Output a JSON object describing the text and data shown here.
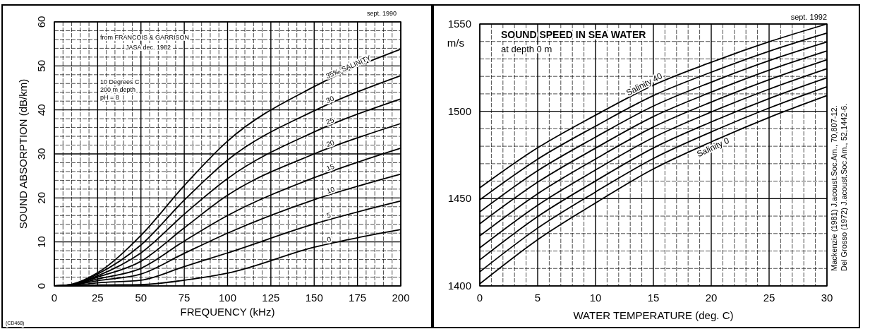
{
  "chart_data": [
    {
      "type": "line",
      "xlabel": "FREQUENCY  (kHz)",
      "ylabel": "SOUND ABSORPTION  (dB/km)",
      "xlim": [
        0,
        200
      ],
      "ylim": [
        0,
        60
      ],
      "xticks": [
        0,
        {
          "value": 5,
          "label": null
        },
        {
          "value": 10,
          "label": null
        },
        {
          "value": 15,
          "label": null
        },
        {
          "value": 20,
          "label": null
        },
        25,
        {
          "value": 30,
          "label": null
        },
        {
          "value": 35,
          "label": null
        },
        {
          "value": 40,
          "label": null
        },
        {
          "value": 45,
          "label": null
        },
        50,
        {
          "value": 55,
          "label": null
        },
        {
          "value": 60,
          "label": null
        },
        {
          "value": 65,
          "label": null
        },
        {
          "value": 70,
          "label": null
        },
        75,
        {
          "value": 80,
          "label": null
        },
        {
          "value": 85,
          "label": null
        },
        {
          "value": 90,
          "label": null
        },
        {
          "value": 95,
          "label": null
        },
        100,
        {
          "value": 105,
          "label": null
        },
        {
          "value": 110,
          "label": null
        },
        {
          "value": 115,
          "label": null
        },
        {
          "value": 120,
          "label": null
        },
        125,
        {
          "value": 130,
          "label": null
        },
        {
          "value": 135,
          "label": null
        },
        {
          "value": 140,
          "label": null
        },
        {
          "value": 145,
          "label": null
        },
        150,
        {
          "value": 155,
          "label": null
        },
        {
          "value": 160,
          "label": null
        },
        {
          "value": 165,
          "label": null
        },
        {
          "value": 170,
          "label": null
        },
        175,
        {
          "value": 180,
          "label": null
        },
        {
          "value": 185,
          "label": null
        },
        {
          "value": 190,
          "label": null
        },
        {
          "value": 195,
          "label": null
        },
        200
      ],
      "yticks": [
        0,
        {
          "value": 2,
          "label": null
        },
        {
          "value": 4,
          "label": null
        },
        {
          "value": 6,
          "label": null
        },
        {
          "value": 8,
          "label": null
        },
        10,
        {
          "value": 12,
          "label": null
        },
        {
          "value": 14,
          "label": null
        },
        {
          "value": 16,
          "label": null
        },
        {
          "value": 18,
          "label": null
        },
        20,
        {
          "value": 22,
          "label": null
        },
        {
          "value": 24,
          "label": null
        },
        {
          "value": 26,
          "label": null
        },
        {
          "value": 28,
          "label": null
        },
        30,
        {
          "value": 32,
          "label": null
        },
        {
          "value": 34,
          "label": null
        },
        {
          "value": 36,
          "label": null
        },
        {
          "value": 38,
          "label": null
        },
        40,
        {
          "value": 42,
          "label": null
        },
        {
          "value": 44,
          "label": null
        },
        {
          "value": 46,
          "label": null
        },
        {
          "value": 48,
          "label": null
        },
        50,
        {
          "value": 52,
          "label": null
        },
        {
          "value": 54,
          "label": null
        },
        {
          "value": 56,
          "label": null
        },
        {
          "value": 58,
          "label": null
        },
        60
      ],
      "grid": true,
      "marker": "none",
      "line_style": "solid",
      "x": [
        0,
        10,
        25,
        50,
        75,
        100,
        150,
        200
      ],
      "series": [
        {
          "name": "35‰  SALINITY",
          "color": "#000000",
          "values": [
            0,
            0.4,
            3,
            11.5,
            22.8,
            32.9,
            45.3,
            53.8
          ]
        },
        {
          "name": "30",
          "color": "#000000",
          "values": [
            0,
            0.3,
            2.7,
            9.3,
            19.5,
            28.6,
            39.8,
            47.8
          ]
        },
        {
          "name": "25",
          "color": "#000000",
          "values": [
            0,
            0.3,
            2.3,
            7.5,
            16.3,
            24.4,
            35,
            42.5
          ]
        },
        {
          "name": "20",
          "color": "#000000",
          "values": [
            0,
            0.2,
            2,
            5.6,
            13.2,
            20.6,
            30,
            36.9
          ]
        },
        {
          "name": "15",
          "color": "#000000",
          "values": [
            0,
            0.2,
            1.6,
            4,
            10.2,
            16,
            24.6,
            31.3
          ]
        },
        {
          "name": "10",
          "color": "#000000",
          "values": [
            0,
            0.2,
            1.2,
            2.7,
            7.4,
            12,
            19.6,
            25.4
          ]
        },
        {
          "name": "5",
          "color": "#000000",
          "values": [
            0,
            0.1,
            0.7,
            1.3,
            4.4,
            7.5,
            14.1,
            19.3
          ]
        },
        {
          "name": "0",
          "color": "#000000",
          "values": [
            0,
            0,
            0.2,
            0.3,
            1.3,
            2.9,
            8.8,
            12.8
          ]
        }
      ],
      "annotations": [
        "from   FRANCOIS & GARRISON",
        "JASA  dec. 1982",
        "10 Degrees C",
        "200 m depth",
        "pH = 8",
        "sept. 1990",
        "(CD468)"
      ]
    },
    {
      "type": "line",
      "title": "SOUND SPEED IN SEA WATER",
      "subtitle": "at depth 0 m",
      "xlabel": "WATER TEMPERATURE  (deg. C)",
      "ylabel": "m/s",
      "xlim": [
        0,
        30
      ],
      "ylim": [
        1400,
        1550
      ],
      "xticks": [
        0,
        {
          "value": 1,
          "label": null
        },
        {
          "value": 2,
          "label": null
        },
        {
          "value": 3,
          "label": null
        },
        {
          "value": 4,
          "label": null
        },
        5,
        {
          "value": 6,
          "label": null
        },
        {
          "value": 7,
          "label": null
        },
        {
          "value": 8,
          "label": null
        },
        {
          "value": 9,
          "label": null
        },
        10,
        {
          "value": 11,
          "label": null
        },
        {
          "value": 12,
          "label": null
        },
        {
          "value": 13,
          "label": null
        },
        {
          "value": 14,
          "label": null
        },
        15,
        {
          "value": 16,
          "label": null
        },
        {
          "value": 17,
          "label": null
        },
        {
          "value": 18,
          "label": null
        },
        {
          "value": 19,
          "label": null
        },
        20,
        {
          "value": 21,
          "label": null
        },
        {
          "value": 22,
          "label": null
        },
        {
          "value": 23,
          "label": null
        },
        {
          "value": 24,
          "label": null
        },
        25,
        {
          "value": 26,
          "label": null
        },
        {
          "value": 27,
          "label": null
        },
        {
          "value": 28,
          "label": null
        },
        {
          "value": 29,
          "label": null
        },
        30
      ],
      "yticks": [
        1400,
        {
          "value": 1410,
          "label": null
        },
        {
          "value": 1420,
          "label": null
        },
        {
          "value": 1430,
          "label": null
        },
        {
          "value": 1440,
          "label": null
        },
        1450,
        {
          "value": 1460,
          "label": null
        },
        {
          "value": 1470,
          "label": null
        },
        {
          "value": 1480,
          "label": null
        },
        {
          "value": 1490,
          "label": null
        },
        1500,
        {
          "value": 1510,
          "label": null
        },
        {
          "value": 1520,
          "label": null
        },
        {
          "value": 1530,
          "label": null
        },
        {
          "value": 1540,
          "label": null
        },
        1550
      ],
      "grid": true,
      "marker": "none",
      "line_style": "solid",
      "x": [
        0,
        5,
        10,
        15,
        20,
        25,
        30
      ],
      "series": [
        {
          "name": "Salinity 0",
          "color": "#000000",
          "values": [
            1401.2,
            1426.5,
            1447.5,
            1467,
            1482.5,
            1496.5,
            1509
          ]
        },
        {
          "color": "#000000",
          "values": [
            1408.1,
            1433.1,
            1453.8,
            1473,
            1488.2,
            1501.9,
            1514.1
          ]
        },
        {
          "color": "#000000",
          "values": [
            1414.9,
            1439.7,
            1460.1,
            1479,
            1493.9,
            1507.3,
            1519.2
          ]
        },
        {
          "color": "#000000",
          "values": [
            1421.8,
            1446.2,
            1466.4,
            1485,
            1499.6,
            1512.7,
            1524.4
          ]
        },
        {
          "color": "#000000",
          "values": [
            1428.7,
            1452.8,
            1472.7,
            1491,
            1505.3,
            1518.1,
            1529.5
          ]
        },
        {
          "color": "#000000",
          "values": [
            1435.6,
            1459.4,
            1478.9,
            1497,
            1511,
            1523.6,
            1534.6
          ]
        },
        {
          "color": "#000000",
          "values": [
            1442.4,
            1466,
            1485.2,
            1503,
            1516.7,
            1529,
            1539.7
          ]
        },
        {
          "color": "#000000",
          "values": [
            1449.3,
            1472.6,
            1491.5,
            1509,
            1522.4,
            1534.4,
            1544.8
          ]
        },
        {
          "name": "Salinity 40",
          "color": "#000000",
          "values": [
            1456.2,
            1479.1,
            1497.8,
            1515,
            1528.1,
            1539.8,
            1550
          ]
        }
      ],
      "annotations": [
        "sept. 1992",
        "Mackenzie  (1981)  J.acoust.Soc.Am., 70,807-12.",
        "Del Grosso  (1972)  J.acoust.Soc.Am., 52,1442-6."
      ]
    }
  ]
}
